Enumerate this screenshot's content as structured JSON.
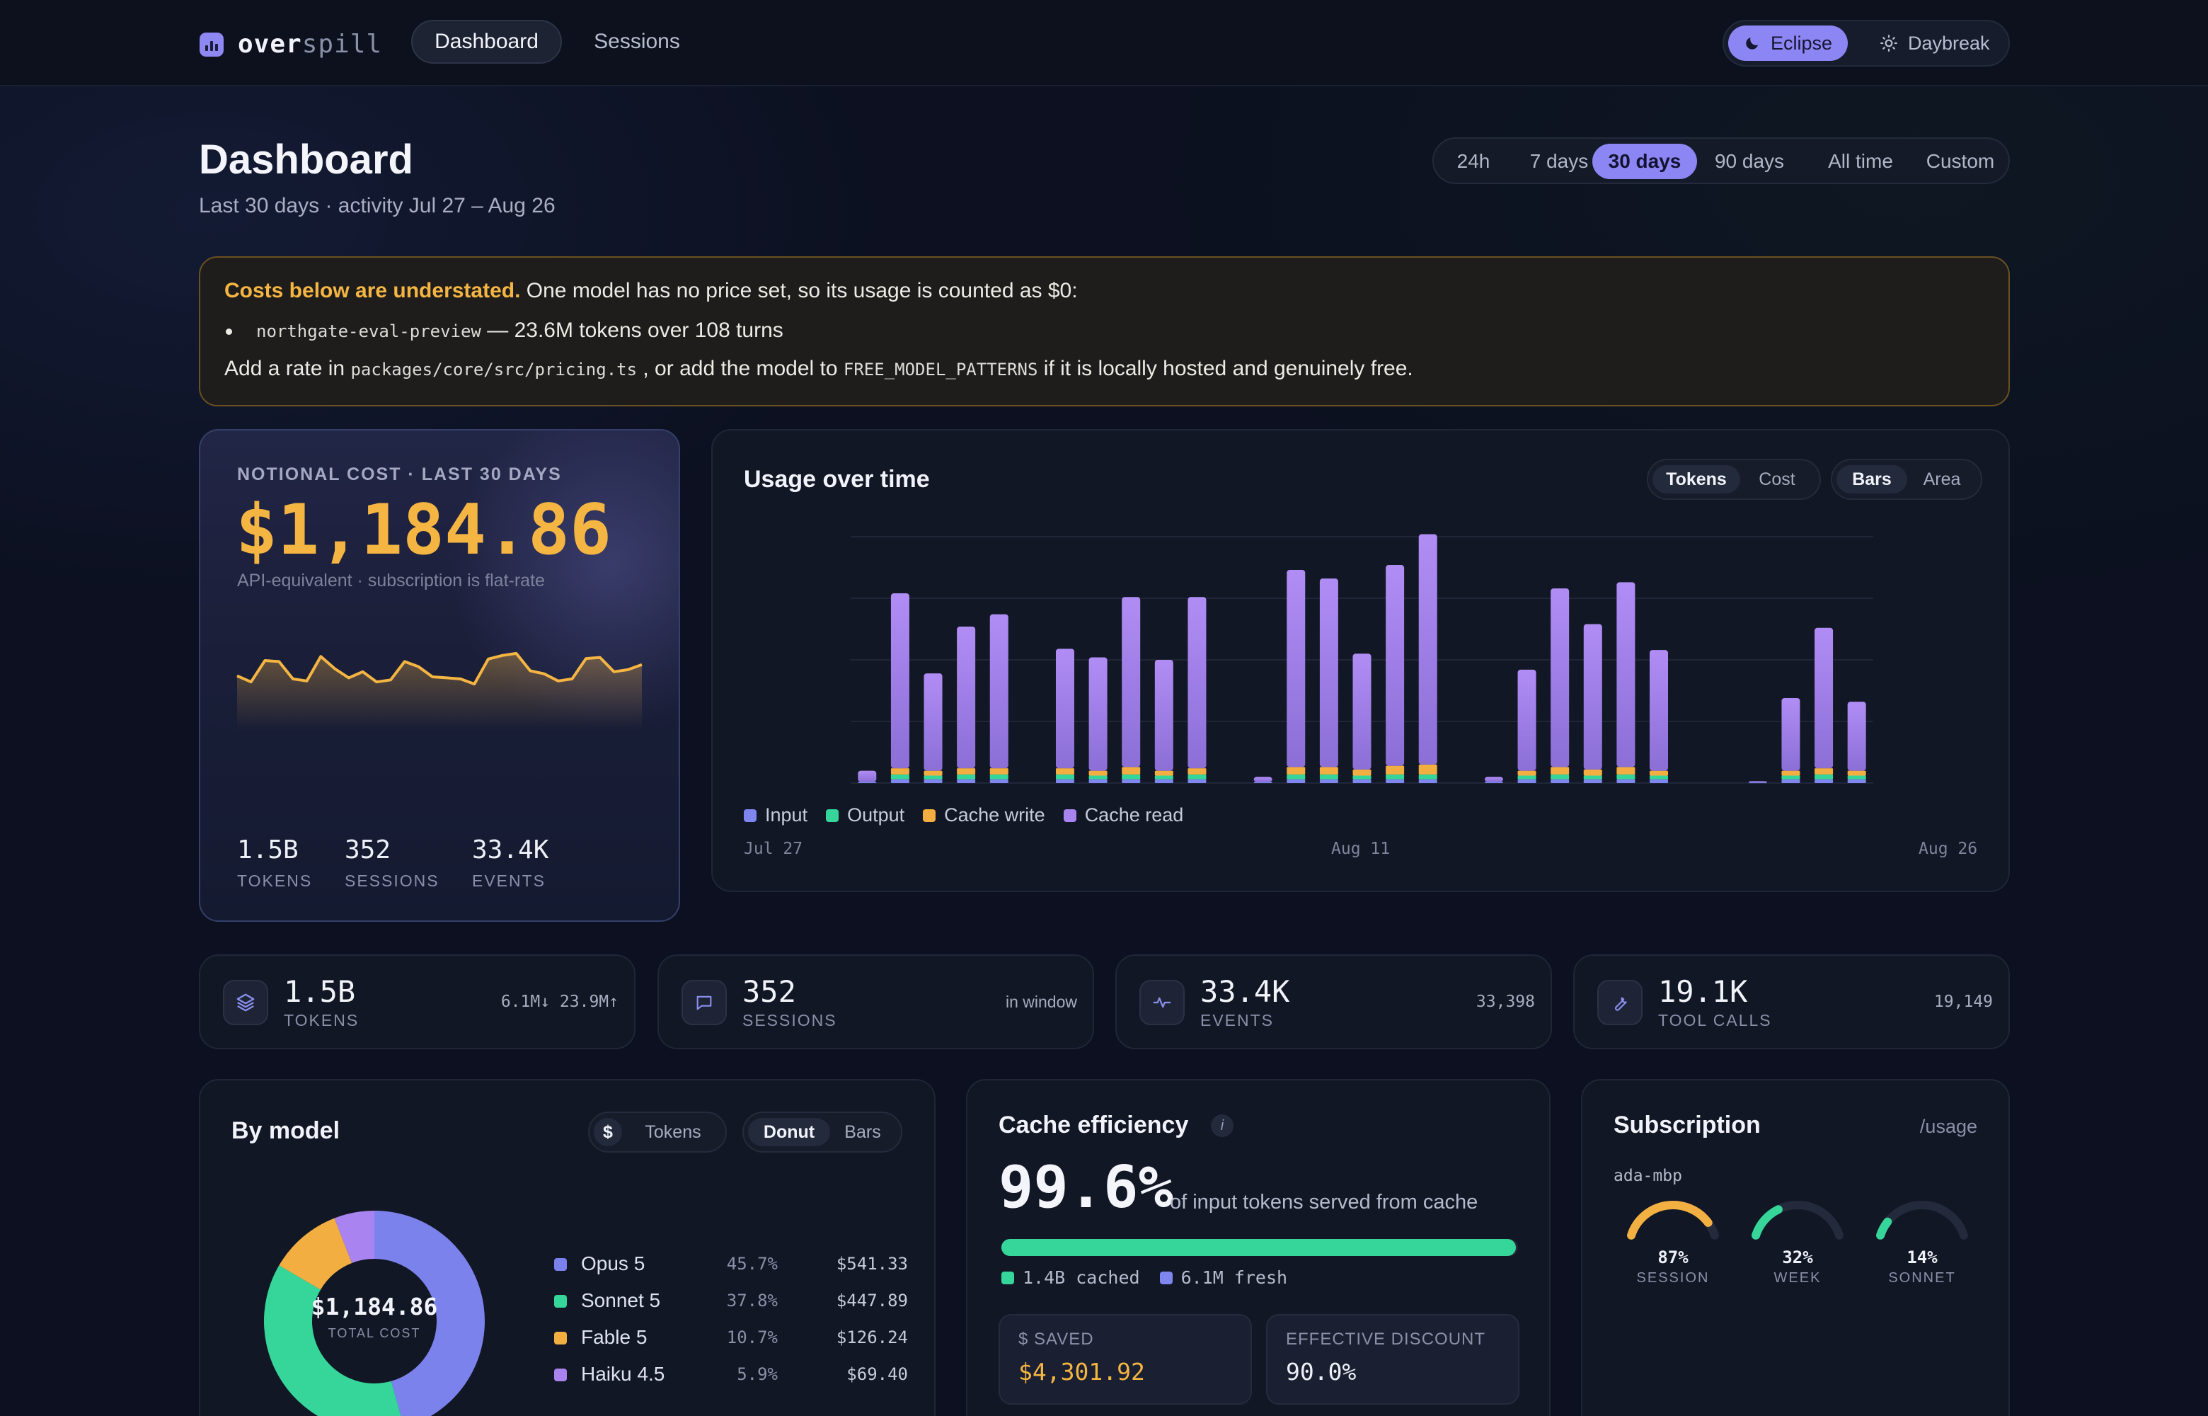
{
  "brand": {
    "name_a": "over",
    "name_b": "spill"
  },
  "nav": {
    "tabs": [
      {
        "label": "Dashboard",
        "active": true
      },
      {
        "label": "Sessions",
        "active": false
      }
    ]
  },
  "theme": {
    "options": [
      {
        "label": "Eclipse",
        "icon": "moon-icon",
        "active": true
      },
      {
        "label": "Daybreak",
        "icon": "sun-icon",
        "active": false
      }
    ]
  },
  "header": {
    "title": "Dashboard",
    "subtitle": "Last 30 days · activity Jul 27 – Aug 26"
  },
  "range": {
    "options": [
      "24h",
      "7 days",
      "30 days",
      "90 days",
      "All time",
      "Custom"
    ],
    "selected": "30 days"
  },
  "warning": {
    "strong": "Costs below are understated.",
    "rest": "One model has no price set, so its usage is counted as $0:",
    "model": "northgate-eval-preview",
    "model_detail": "— 23.6M tokens over 108 turns",
    "fix_a": "Add a rate in",
    "fix_path": "packages/core/src/pricing.ts",
    "fix_b": ", or add the model to",
    "fix_const": "FREE_MODEL_PATTERNS",
    "fix_c": "if it is locally hosted and genuinely free."
  },
  "cost_card": {
    "label": "NOTIONAL COST · LAST 30 DAYS",
    "value": "$1,184.86",
    "note": "API-equivalent · subscription is flat-rate",
    "sparkline": [
      52,
      40,
      82,
      80,
      46,
      42,
      90,
      66,
      48,
      60,
      40,
      44,
      80,
      70,
      50,
      48,
      46,
      36,
      85,
      92,
      96,
      62,
      56,
      42,
      46,
      86,
      88,
      60,
      64,
      74
    ],
    "stats": [
      {
        "value": "1.5B",
        "label": "TOKENS"
      },
      {
        "value": "352",
        "label": "SESSIONS"
      },
      {
        "value": "33.4K",
        "label": "EVENTS"
      }
    ]
  },
  "usage": {
    "title": "Usage over time",
    "metric_toggle": {
      "options": [
        "Tokens",
        "Cost"
      ],
      "selected": "Tokens"
    },
    "style_toggle": {
      "options": [
        "Bars",
        "Area"
      ],
      "selected": "Bars"
    },
    "x_labels": [
      "Jul 27",
      "Aug 11",
      "Aug 26"
    ]
  },
  "chart_data": {
    "type": "bar",
    "stacked": true,
    "title": "Usage over time",
    "categories": [
      "Jul 27",
      "Jul 28",
      "Jul 29",
      "Jul 30",
      "Jul 31",
      "Aug 1",
      "Aug 2",
      "Aug 3",
      "Aug 4",
      "Aug 5",
      "Aug 6",
      "Aug 7",
      "Aug 8",
      "Aug 9",
      "Aug 10",
      "Aug 11",
      "Aug 12",
      "Aug 13",
      "Aug 14",
      "Aug 15",
      "Aug 16",
      "Aug 17",
      "Aug 18",
      "Aug 19",
      "Aug 20",
      "Aug 21",
      "Aug 22",
      "Aug 23",
      "Aug 24",
      "Aug 25",
      "Aug 26"
    ],
    "series": [
      {
        "name": "Input",
        "color": "#7f86f0",
        "values": [
          0.1,
          0.3,
          0.3,
          0.3,
          0.3,
          0,
          0.3,
          0.3,
          0.3,
          0.3,
          0.3,
          0,
          0.1,
          0.3,
          0.3,
          0.3,
          0.3,
          0.3,
          0,
          0.1,
          0.3,
          0.3,
          0.3,
          0.3,
          0.3,
          0,
          0,
          0.05,
          0.3,
          0.3,
          0.3
        ]
      },
      {
        "name": "Output",
        "color": "#36d69a",
        "values": [
          0,
          0.4,
          0.3,
          0.4,
          0.4,
          0,
          0.4,
          0.3,
          0.4,
          0.3,
          0.4,
          0,
          0,
          0.4,
          0.4,
          0.3,
          0.4,
          0.4,
          0,
          0,
          0.3,
          0.4,
          0.3,
          0.4,
          0.3,
          0,
          0,
          0,
          0.3,
          0.4,
          0.3
        ]
      },
      {
        "name": "Cache write",
        "color": "#f3ae42",
        "values": [
          0,
          0.5,
          0.4,
          0.5,
          0.5,
          0,
          0.5,
          0.4,
          0.6,
          0.4,
          0.5,
          0,
          0,
          0.6,
          0.6,
          0.5,
          0.7,
          0.8,
          0,
          0,
          0.4,
          0.6,
          0.5,
          0.6,
          0.4,
          0,
          0,
          0,
          0.4,
          0.5,
          0.4
        ]
      },
      {
        "name": "Cache read",
        "color": "#a984f0",
        "values": [
          0.9,
          14.2,
          7.9,
          11.5,
          12.5,
          0,
          9.7,
          9.2,
          13.8,
          9.0,
          13.9,
          0,
          0.4,
          16.0,
          15.3,
          9.4,
          16.3,
          18.7,
          0,
          0.4,
          8.2,
          14.5,
          11.8,
          15.0,
          9.8,
          0,
          0,
          0.1,
          5.9,
          11.4,
          5.6
        ]
      }
    ],
    "y_max": 20,
    "grid": true,
    "legend": "bottom-left"
  },
  "stats": [
    {
      "icon": "layers-icon",
      "value": "1.5B",
      "label": "TOKENS",
      "right": "6.1M↓ 23.9M↑"
    },
    {
      "icon": "chat-icon",
      "value": "352",
      "label": "SESSIONS",
      "right": "in window"
    },
    {
      "icon": "pulse-icon",
      "value": "33.4K",
      "label": "EVENTS",
      "right": "33,398"
    },
    {
      "icon": "wrench-icon",
      "value": "19.1K",
      "label": "TOOL CALLS",
      "right": "19,149"
    }
  ],
  "by_model": {
    "title": "By model",
    "unit_toggle": {
      "options": [
        "$",
        "Tokens"
      ],
      "selected": "$"
    },
    "view_toggle": {
      "options": [
        "Donut",
        "Bars"
      ],
      "selected": "Donut"
    },
    "total_value": "$1,184.86",
    "total_label": "TOTAL COST",
    "models": [
      {
        "name": "Opus 5",
        "pct": "45.7%",
        "cost": "$541.33",
        "share": 45.7,
        "color": "#7c82ec"
      },
      {
        "name": "Sonnet 5",
        "pct": "37.8%",
        "cost": "$447.89",
        "share": 37.8,
        "color": "#36d69a"
      },
      {
        "name": "Fable 5",
        "pct": "10.7%",
        "cost": "$126.24",
        "share": 10.7,
        "color": "#f3ae42"
      },
      {
        "name": "Haiku 4.5",
        "pct": "5.9%",
        "cost": "$69.40",
        "share": 5.9,
        "color": "#a984f0"
      }
    ]
  },
  "cache": {
    "title": "Cache efficiency",
    "info": "i",
    "value": "99.6%",
    "desc": "of input tokens served from cache",
    "fill": 0.996,
    "cached": "1.4B cached",
    "fresh": "6.1M fresh",
    "saved_label": "$ SAVED",
    "saved_value": "$4,301.92",
    "discount_label": "EFFECTIVE DISCOUNT",
    "discount_value": "90.0%"
  },
  "subscription": {
    "title": "Subscription",
    "link": "/usage",
    "host": "ada-mbp",
    "gauges": [
      {
        "value": "87%",
        "label": "SESSION",
        "level": 0.87,
        "color": "#f3b042"
      },
      {
        "value": "32%",
        "label": "WEEK",
        "level": 0.32,
        "color": "#36d69a"
      },
      {
        "value": "14%",
        "label": "SONNET",
        "level": 0.14,
        "color": "#36d69a"
      }
    ]
  }
}
